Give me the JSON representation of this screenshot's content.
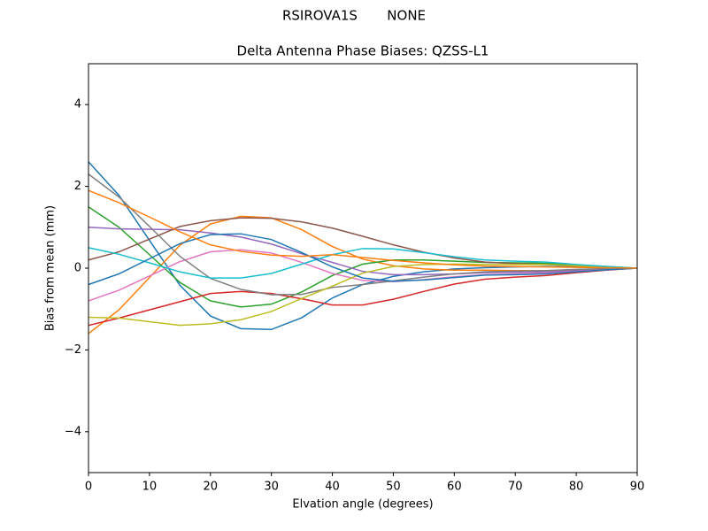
{
  "chart_data": {
    "type": "line",
    "suptitle": "RSIROVA1S       NONE",
    "title": "Delta Antenna Phase Biases: QZSS-L1",
    "xlabel": "Elvation angle (degrees)",
    "ylabel": "Bias from mean (mm)",
    "x": [
      0,
      5,
      10,
      15,
      20,
      25,
      30,
      35,
      40,
      45,
      50,
      55,
      60,
      65,
      70,
      75,
      80,
      85,
      90
    ],
    "xlim": [
      0,
      90
    ],
    "xticks": [
      0,
      10,
      20,
      30,
      40,
      50,
      60,
      70,
      80,
      90
    ],
    "ylim": [
      -5,
      5
    ],
    "yticks": [
      {
        "value": -4,
        "label": "−4"
      },
      {
        "value": -2,
        "label": "−2"
      },
      0,
      2,
      4
    ],
    "grid": false,
    "series": [
      {
        "color": "#1f77b4",
        "values": [
          2.6,
          1.78,
          0.68,
          -0.42,
          -1.17,
          -1.48,
          -1.5,
          -1.21,
          -0.73,
          -0.4,
          -0.2,
          -0.09,
          -0.02,
          0.01,
          0.03,
          0.04,
          0.03,
          0.01,
          0
        ]
      },
      {
        "color": "#ff7f0e",
        "values": [
          -1.6,
          -1.02,
          -0.23,
          0.56,
          1.08,
          1.27,
          1.23,
          0.94,
          0.53,
          0.22,
          0.06,
          -0.02,
          -0.05,
          -0.05,
          -0.06,
          -0.06,
          -0.05,
          -0.02,
          0
        ]
      },
      {
        "color": "#2ca02c",
        "values": [
          1.5,
          1.0,
          0.33,
          -0.35,
          -0.8,
          -0.95,
          -0.88,
          -0.58,
          -0.18,
          0.1,
          0.2,
          0.2,
          0.17,
          0.14,
          0.13,
          0.12,
          0.08,
          0.04,
          0
        ]
      },
      {
        "color": "#d62728",
        "values": [
          -1.4,
          -1.22,
          -1.02,
          -0.82,
          -0.62,
          -0.57,
          -0.62,
          -0.75,
          -0.9,
          -0.9,
          -0.76,
          -0.57,
          -0.39,
          -0.27,
          -0.22,
          -0.18,
          -0.11,
          -0.05,
          0
        ]
      },
      {
        "color": "#9467bd",
        "values": [
          1.0,
          0.96,
          0.95,
          0.94,
          0.86,
          0.76,
          0.59,
          0.35,
          0.14,
          -0.08,
          -0.16,
          -0.16,
          -0.14,
          -0.11,
          -0.1,
          -0.09,
          -0.06,
          -0.03,
          0
        ]
      },
      {
        "color": "#8c564b",
        "values": [
          0.2,
          0.4,
          0.71,
          1.02,
          1.16,
          1.23,
          1.22,
          1.13,
          0.98,
          0.78,
          0.57,
          0.39,
          0.25,
          0.15,
          0.11,
          0.09,
          0.05,
          0.02,
          0
        ]
      },
      {
        "color": "#e377c2",
        "values": [
          -0.8,
          -0.54,
          -0.19,
          0.16,
          0.4,
          0.45,
          0.37,
          0.14,
          -0.13,
          -0.3,
          -0.33,
          -0.28,
          -0.21,
          -0.16,
          -0.14,
          -0.12,
          -0.08,
          -0.04,
          0
        ]
      },
      {
        "color": "#7f7f7f",
        "values": [
          2.3,
          1.74,
          1.02,
          0.29,
          -0.25,
          -0.52,
          -0.65,
          -0.64,
          -0.47,
          -0.4,
          -0.31,
          -0.22,
          -0.14,
          -0.09,
          -0.07,
          -0.06,
          -0.03,
          -0.01,
          0
        ]
      },
      {
        "color": "#bcbd22",
        "values": [
          -1.2,
          -1.22,
          -1.31,
          -1.4,
          -1.36,
          -1.26,
          -1.06,
          -0.74,
          -0.44,
          -0.12,
          0.04,
          0.09,
          0.1,
          0.09,
          0.09,
          0.09,
          0.06,
          0.03,
          0
        ]
      },
      {
        "color": "#17becf",
        "values": [
          0.5,
          0.34,
          0.13,
          -0.09,
          -0.24,
          -0.24,
          -0.13,
          0.1,
          0.33,
          0.48,
          0.47,
          0.38,
          0.28,
          0.2,
          0.17,
          0.15,
          0.09,
          0.04,
          0
        ]
      },
      {
        "color": "#1f77b4",
        "values": [
          -0.4,
          -0.14,
          0.23,
          0.6,
          0.82,
          0.84,
          0.7,
          0.38,
          0.03,
          -0.24,
          -0.32,
          -0.29,
          -0.23,
          -0.17,
          -0.16,
          -0.14,
          -0.09,
          -0.04,
          0
        ]
      },
      {
        "color": "#ff7f0e",
        "values": [
          1.9,
          1.6,
          1.25,
          0.89,
          0.57,
          0.41,
          0.32,
          0.29,
          0.33,
          0.26,
          0.19,
          0.13,
          0.08,
          0.05,
          0.04,
          0.03,
          0.02,
          0.01,
          0
        ]
      }
    ]
  }
}
